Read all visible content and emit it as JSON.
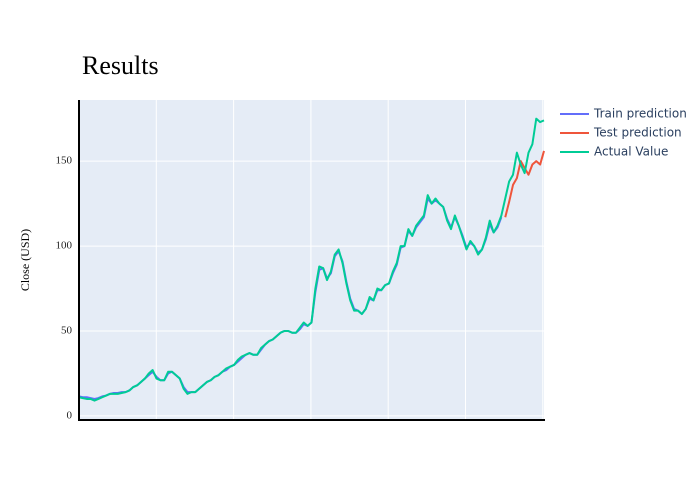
{
  "chart_data": {
    "type": "line",
    "title": "Results",
    "ylabel": "Close (USD)",
    "ylim": [
      -2.4,
      186
    ],
    "yticks": [
      0,
      50,
      100,
      150
    ],
    "grid": true,
    "legend": "right",
    "series": [
      {
        "name": "Train prediction",
        "color": "#636efa",
        "values": [
          11.5,
          11,
          11,
          10.5,
          10,
          10.5,
          11.5,
          12,
          13,
          13.5,
          13.5,
          14,
          14,
          15,
          17,
          18,
          20,
          22,
          24,
          26,
          23,
          21,
          21,
          25,
          26,
          24,
          22,
          17,
          14,
          14,
          14,
          16,
          18,
          20,
          21,
          23,
          24,
          26,
          27,
          29,
          30,
          32,
          34,
          36,
          37,
          36,
          36,
          39,
          42,
          44,
          45,
          47,
          49,
          50,
          50,
          49,
          49,
          51,
          54,
          53,
          55,
          73,
          86,
          87,
          81,
          84,
          94,
          97,
          91,
          79,
          69,
          63,
          62,
          60,
          63,
          69,
          68,
          74,
          74,
          77,
          78,
          84,
          89,
          99,
          100,
          109,
          106,
          111,
          114,
          117,
          128,
          125,
          127,
          125,
          123,
          116,
          111,
          117,
          112,
          106,
          99,
          102,
          100,
          96,
          98,
          104,
          113,
          108,
          111,
          117,
          null,
          null,
          null,
          null,
          null,
          null,
          null,
          null,
          null,
          null,
          null
        ]
      },
      {
        "name": "Test prediction",
        "color": "#ef553b",
        "values": [
          null,
          null,
          null,
          null,
          null,
          null,
          null,
          null,
          null,
          null,
          null,
          null,
          null,
          null,
          null,
          null,
          null,
          null,
          null,
          null,
          null,
          null,
          null,
          null,
          null,
          null,
          null,
          null,
          null,
          null,
          null,
          null,
          null,
          null,
          null,
          null,
          null,
          null,
          null,
          null,
          null,
          null,
          null,
          null,
          null,
          null,
          null,
          null,
          null,
          null,
          null,
          null,
          null,
          null,
          null,
          null,
          null,
          null,
          null,
          null,
          null,
          null,
          null,
          null,
          null,
          null,
          null,
          null,
          null,
          null,
          null,
          null,
          null,
          null,
          null,
          null,
          null,
          null,
          null,
          null,
          null,
          null,
          null,
          null,
          null,
          null,
          null,
          null,
          null,
          null,
          null,
          null,
          null,
          null,
          null,
          null,
          null,
          null,
          null,
          null,
          null,
          null,
          null,
          null,
          null,
          null,
          null,
          null,
          null,
          null,
          117,
          126,
          136,
          140,
          150,
          146,
          142,
          148,
          150,
          148,
          156
        ]
      },
      {
        "name": "Actual Value",
        "color": "#00cc96",
        "values": [
          11,
          10.5,
          10,
          10,
          9,
          10,
          11,
          12,
          13,
          13,
          13,
          13.5,
          14,
          15,
          17,
          18,
          20,
          22,
          25,
          27,
          22,
          21,
          21,
          26,
          26,
          24,
          22,
          16,
          13,
          14,
          14,
          16,
          18,
          20,
          21,
          23,
          24,
          26,
          28,
          29,
          30,
          33,
          35,
          36,
          37,
          36,
          36,
          40,
          42,
          44,
          45,
          47,
          49,
          50,
          50,
          49,
          49,
          52,
          55,
          53,
          55,
          75,
          88,
          87,
          80,
          85,
          95,
          98,
          90,
          78,
          68,
          62,
          62,
          60,
          63,
          70,
          68,
          75,
          74,
          77,
          78,
          85,
          90,
          100,
          100,
          110,
          106,
          112,
          115,
          118,
          130,
          125,
          128,
          125,
          123,
          115,
          110,
          118,
          112,
          105,
          98,
          103,
          100,
          95,
          98,
          105,
          115,
          108,
          112,
          118,
          128,
          138,
          142,
          155,
          148,
          143,
          155,
          160,
          175,
          173,
          174
        ]
      }
    ]
  }
}
